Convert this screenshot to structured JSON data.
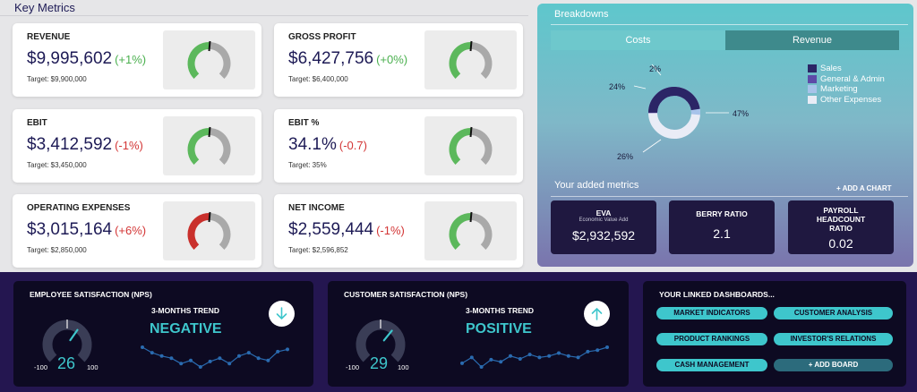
{
  "key_metrics": {
    "title": "Key Metrics",
    "cards": [
      {
        "label": "REVENUE",
        "value": "$9,995,602",
        "change": "(+1%)",
        "target": "Target: $9,900,000",
        "status": "good"
      },
      {
        "label": "GROSS PROFIT",
        "value": "$6,427,756",
        "change": "(+0%)",
        "target": "Target: $6,400,000",
        "status": "good"
      },
      {
        "label": "EBIT",
        "value": "$3,412,592",
        "change": "(-1%)",
        "target": "Target: $3,450,000",
        "status": "good"
      },
      {
        "label": "EBIT %",
        "value": "34.1%",
        "change": "(-0.7)",
        "target": "Target: 35%",
        "status": "good"
      },
      {
        "label": "OPERATING EXPENSES",
        "value": "$3,015,164",
        "change": "(+6%)",
        "target": "Target: $2,850,000",
        "status": "bad"
      },
      {
        "label": "NET INCOME",
        "value": "$2,559,444",
        "change": "(-1%)",
        "target": "Target: $2,596,852",
        "status": "good"
      }
    ]
  },
  "breakdowns": {
    "title": "Breakdowns",
    "tabs": [
      "Costs",
      "Revenue"
    ],
    "active_tab": "Costs",
    "donut_percents": [
      "2%",
      "24%",
      "47%",
      "26%"
    ],
    "legend": [
      {
        "label": "Sales",
        "color": "#2b2566"
      },
      {
        "label": "General & Admin",
        "color": "#5d4aa8"
      },
      {
        "label": "Marketing",
        "color": "#a7c3ea"
      },
      {
        "label": "Other Expenses",
        "color": "#e9ecf6"
      }
    ],
    "added_metrics_title": "Your added metrics",
    "add_chart_label": "+  ADD A CHART",
    "metrics": [
      {
        "title": "EVA",
        "subtitle": "Economic Value Add",
        "value": "$2,932,592"
      },
      {
        "title": "BERRY RATIO",
        "subtitle": "",
        "value": "2.1"
      },
      {
        "title": "PAYROLL HEADCOUNT RATIO",
        "subtitle": "",
        "value": "0.02"
      }
    ]
  },
  "employee": {
    "title": "EMPLOYEE SATISFACTION (NPS)",
    "trend_label": "3-MONTHS TREND",
    "trend_value": "NEGATIVE",
    "score": "26",
    "score_value": 26,
    "min": "-100",
    "max": "100",
    "trend_points": [
      60,
      55,
      52,
      50,
      45,
      48,
      42,
      47,
      50,
      45,
      52,
      55,
      50,
      48,
      56,
      58
    ]
  },
  "customer": {
    "title": "CUSTOMER SATISFACTION (NPS)",
    "trend_label": "3-MONTHS TREND",
    "trend_value": "POSITIVE",
    "score": "29",
    "score_value": 29,
    "min": "-100",
    "max": "100",
    "trend_points": [
      40,
      48,
      35,
      45,
      42,
      50,
      46,
      52,
      48,
      50,
      54,
      50,
      48,
      56,
      58,
      62
    ]
  },
  "linked": {
    "title": "YOUR LINKED DASHBOARDS...",
    "buttons": [
      "MARKET INDICATORS",
      "CUSTOMER ANALYSIS",
      "PRODUCT RANKINGS",
      "INVESTOR'S RELATIONS",
      "CASH MANAGEMENT",
      "+  ADD BOARD"
    ]
  },
  "colors": {
    "good": "#5cb85c",
    "bad": "#c9302c",
    "accent": "#3ec6cc",
    "navy": "#1e1b56"
  }
}
